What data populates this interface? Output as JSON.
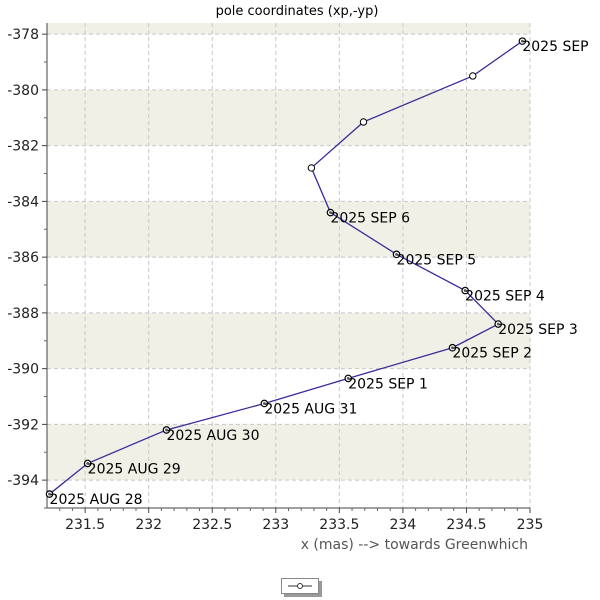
{
  "chart_data": {
    "type": "line",
    "title": "pole coordinates (xp,-yp)",
    "xlabel": "x (mas) --> towards Greenwhich",
    "ylabel": "",
    "xlim": [
      231.2,
      235.0
    ],
    "ylim": [
      -395.0,
      -377.6
    ],
    "x_ticks": [
      231.5,
      232,
      232.5,
      233,
      233.5,
      234,
      234.5,
      235
    ],
    "x_tick_labels": [
      "231.5",
      "232",
      "232.5",
      "233",
      "233.5",
      "234",
      "234.5",
      "235"
    ],
    "y_ticks": [
      -378,
      -380,
      -382,
      -384,
      -386,
      -388,
      -390,
      -392,
      -394
    ],
    "y_tick_labels": [
      "-378",
      "-380",
      "-382",
      "-384",
      "-386",
      "-388",
      "-390",
      "-392",
      "-394"
    ],
    "grid": true,
    "colors": {
      "line": "#3a2a9a",
      "band": "#f0f0e6",
      "grid": "#c8c8c8",
      "marker_edge": "#000000"
    },
    "legend": {
      "position": "bottom-center",
      "entries": [
        {
          "label": "",
          "marker": "open-circle-line"
        }
      ]
    },
    "series": [
      {
        "points": [
          {
            "x": 231.22,
            "y": -394.5,
            "label": "2025 AUG 28",
            "marker": "filled"
          },
          {
            "x": 231.52,
            "y": -393.4,
            "label": "2025 AUG 29",
            "marker": "filled"
          },
          {
            "x": 232.14,
            "y": -392.2,
            "label": "2025 AUG 30",
            "marker": "filled"
          },
          {
            "x": 232.91,
            "y": -391.25,
            "label": "2025 AUG 31",
            "marker": "filled"
          },
          {
            "x": 233.57,
            "y": -390.35,
            "label": "2025 SEP 1",
            "marker": "filled"
          },
          {
            "x": 234.39,
            "y": -389.25,
            "label": "2025 SEP 2",
            "marker": "filled"
          },
          {
            "x": 234.75,
            "y": -388.4,
            "label": "2025 SEP 3",
            "marker": "filled"
          },
          {
            "x": 234.49,
            "y": -387.2,
            "label": "2025 SEP 4",
            "marker": "filled"
          },
          {
            "x": 233.95,
            "y": -385.9,
            "label": "2025 SEP 5",
            "marker": "filled"
          },
          {
            "x": 233.43,
            "y": -384.4,
            "label": "2025 SEP 6",
            "marker": "filled"
          },
          {
            "x": 233.28,
            "y": -382.8,
            "label": "",
            "marker": "open"
          },
          {
            "x": 233.69,
            "y": -381.15,
            "label": "",
            "marker": "open"
          },
          {
            "x": 234.55,
            "y": -379.5,
            "label": "",
            "marker": "open"
          },
          {
            "x": 234.94,
            "y": -378.25,
            "label": "2025 SEP",
            "marker": "filled"
          }
        ]
      }
    ]
  }
}
